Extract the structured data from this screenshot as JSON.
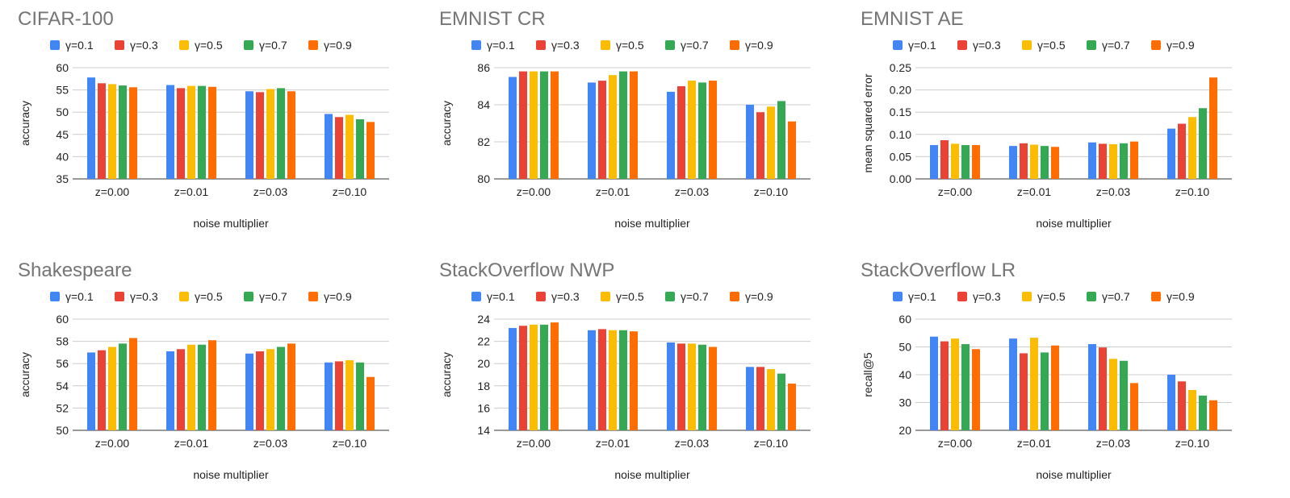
{
  "chart_data": [
    {
      "type": "bar",
      "title": "CIFAR-100",
      "xlabel": "noise multiplier",
      "ylabel": "accuracy",
      "categories": [
        "z=0.00",
        "z=0.01",
        "z=0.03",
        "z=0.10"
      ],
      "ylim": [
        35,
        60
      ],
      "yticks": [
        "35",
        "40",
        "45",
        "50",
        "55",
        "60"
      ],
      "yticks_values": [
        35,
        40,
        45,
        50,
        55,
        60
      ],
      "series": [
        {
          "name": "γ=0.1",
          "color": "#4285F4",
          "values": [
            57.8,
            56.1,
            54.7,
            49.6
          ]
        },
        {
          "name": "γ=0.3",
          "color": "#EA4335",
          "values": [
            56.5,
            55.4,
            54.5,
            48.9
          ]
        },
        {
          "name": "γ=0.5",
          "color": "#FBBC04",
          "values": [
            56.3,
            55.9,
            55.2,
            49.4
          ]
        },
        {
          "name": "γ=0.7",
          "color": "#34A853",
          "values": [
            56.0,
            55.9,
            55.4,
            48.4
          ]
        },
        {
          "name": "γ=0.9",
          "color": "#FF6D01",
          "values": [
            55.6,
            55.7,
            54.7,
            47.8
          ]
        }
      ]
    },
    {
      "type": "bar",
      "title": "EMNIST CR",
      "xlabel": "noise multiplier",
      "ylabel": "accuracy",
      "categories": [
        "z=0.00",
        "z=0.01",
        "z=0.03",
        "z=0.10"
      ],
      "ylim": [
        80,
        86
      ],
      "yticks": [
        "80",
        "82",
        "84",
        "86"
      ],
      "yticks_values": [
        80,
        82,
        84,
        86
      ],
      "series": [
        {
          "name": "γ=0.1",
          "color": "#4285F4",
          "values": [
            85.5,
            85.2,
            84.7,
            84.0
          ]
        },
        {
          "name": "γ=0.3",
          "color": "#EA4335",
          "values": [
            85.8,
            85.3,
            85.0,
            83.6
          ]
        },
        {
          "name": "γ=0.5",
          "color": "#FBBC04",
          "values": [
            85.8,
            85.6,
            85.3,
            83.9
          ]
        },
        {
          "name": "γ=0.7",
          "color": "#34A853",
          "values": [
            85.8,
            85.8,
            85.2,
            84.2
          ]
        },
        {
          "name": "γ=0.9",
          "color": "#FF6D01",
          "values": [
            85.8,
            85.8,
            85.3,
            83.1
          ]
        }
      ]
    },
    {
      "type": "bar",
      "title": "EMNIST AE",
      "xlabel": "noise multiplier",
      "ylabel": "mean squared error",
      "categories": [
        "z=0.00",
        "z=0.01",
        "z=0.03",
        "z=0.10"
      ],
      "ylim": [
        0,
        0.25
      ],
      "yticks": [
        "0.00",
        "0.05",
        "0.10",
        "0.15",
        "0.20",
        "0.25"
      ],
      "yticks_values": [
        0,
        0.05,
        0.1,
        0.15,
        0.2,
        0.25
      ],
      "series": [
        {
          "name": "γ=0.1",
          "color": "#4285F4",
          "values": [
            0.076,
            0.074,
            0.082,
            0.113
          ]
        },
        {
          "name": "γ=0.3",
          "color": "#EA4335",
          "values": [
            0.087,
            0.08,
            0.079,
            0.124
          ]
        },
        {
          "name": "γ=0.5",
          "color": "#FBBC04",
          "values": [
            0.079,
            0.077,
            0.078,
            0.139
          ]
        },
        {
          "name": "γ=0.7",
          "color": "#34A853",
          "values": [
            0.076,
            0.074,
            0.08,
            0.159
          ]
        },
        {
          "name": "γ=0.9",
          "color": "#FF6D01",
          "values": [
            0.076,
            0.072,
            0.084,
            0.228
          ]
        }
      ]
    },
    {
      "type": "bar",
      "title": "Shakespeare",
      "xlabel": "noise multiplier",
      "ylabel": "accuracy",
      "categories": [
        "z=0.00",
        "z=0.01",
        "z=0.03",
        "z=0.10"
      ],
      "ylim": [
        50,
        60
      ],
      "yticks": [
        "50",
        "52",
        "54",
        "56",
        "58",
        "60"
      ],
      "yticks_values": [
        50,
        52,
        54,
        56,
        58,
        60
      ],
      "series": [
        {
          "name": "γ=0.1",
          "color": "#4285F4",
          "values": [
            57.0,
            57.1,
            56.9,
            56.1
          ]
        },
        {
          "name": "γ=0.3",
          "color": "#EA4335",
          "values": [
            57.2,
            57.3,
            57.1,
            56.2
          ]
        },
        {
          "name": "γ=0.5",
          "color": "#FBBC04",
          "values": [
            57.5,
            57.7,
            57.3,
            56.3
          ]
        },
        {
          "name": "γ=0.7",
          "color": "#34A853",
          "values": [
            57.8,
            57.7,
            57.5,
            56.1
          ]
        },
        {
          "name": "γ=0.9",
          "color": "#FF6D01",
          "values": [
            58.3,
            58.1,
            57.8,
            54.8
          ]
        }
      ]
    },
    {
      "type": "bar",
      "title": "StackOverflow NWP",
      "xlabel": "noise multiplier",
      "ylabel": "accuracy",
      "categories": [
        "z=0.00",
        "z=0.01",
        "z=0.03",
        "z=0.10"
      ],
      "ylim": [
        14,
        24
      ],
      "yticks": [
        "14",
        "16",
        "18",
        "20",
        "22",
        "24"
      ],
      "yticks_values": [
        14,
        16,
        18,
        20,
        22,
        24
      ],
      "series": [
        {
          "name": "γ=0.1",
          "color": "#4285F4",
          "values": [
            23.2,
            23.0,
            21.9,
            19.7
          ]
        },
        {
          "name": "γ=0.3",
          "color": "#EA4335",
          "values": [
            23.4,
            23.1,
            21.8,
            19.7
          ]
        },
        {
          "name": "γ=0.5",
          "color": "#FBBC04",
          "values": [
            23.5,
            23.0,
            21.8,
            19.5
          ]
        },
        {
          "name": "γ=0.7",
          "color": "#34A853",
          "values": [
            23.5,
            23.0,
            21.7,
            19.1
          ]
        },
        {
          "name": "γ=0.9",
          "color": "#FF6D01",
          "values": [
            23.7,
            22.9,
            21.5,
            18.2
          ]
        }
      ]
    },
    {
      "type": "bar",
      "title": "StackOverflow LR",
      "xlabel": "noise multiplier",
      "ylabel": "recall@5",
      "categories": [
        "z=0.00",
        "z=0.01",
        "z=0.03",
        "z=0.10"
      ],
      "ylim": [
        20,
        60
      ],
      "yticks": [
        "20",
        "30",
        "40",
        "50",
        "60"
      ],
      "yticks_values": [
        20,
        30,
        40,
        50,
        60
      ],
      "series": [
        {
          "name": "γ=0.1",
          "color": "#4285F4",
          "values": [
            53.7,
            53.0,
            51.0,
            40.0
          ]
        },
        {
          "name": "γ=0.3",
          "color": "#EA4335",
          "values": [
            52.0,
            47.7,
            49.8,
            37.6
          ]
        },
        {
          "name": "γ=0.5",
          "color": "#FBBC04",
          "values": [
            53.0,
            53.3,
            45.7,
            34.5
          ]
        },
        {
          "name": "γ=0.7",
          "color": "#34A853",
          "values": [
            51.0,
            48.0,
            45.0,
            32.5
          ]
        },
        {
          "name": "γ=0.9",
          "color": "#FF6D01",
          "values": [
            49.2,
            50.5,
            37.0,
            30.8
          ]
        }
      ]
    }
  ]
}
